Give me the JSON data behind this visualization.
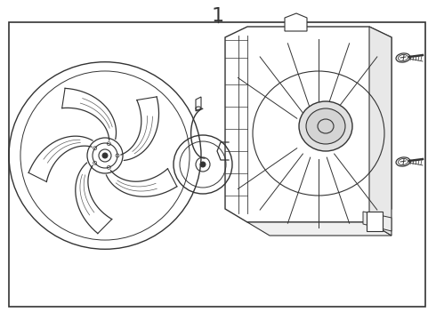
{
  "bg_color": "#ffffff",
  "line_color": "#333333",
  "border_color": "#333333",
  "label": "1",
  "label_fontsize": 16,
  "fig_width": 4.9,
  "fig_height": 3.6,
  "dpi": 100
}
